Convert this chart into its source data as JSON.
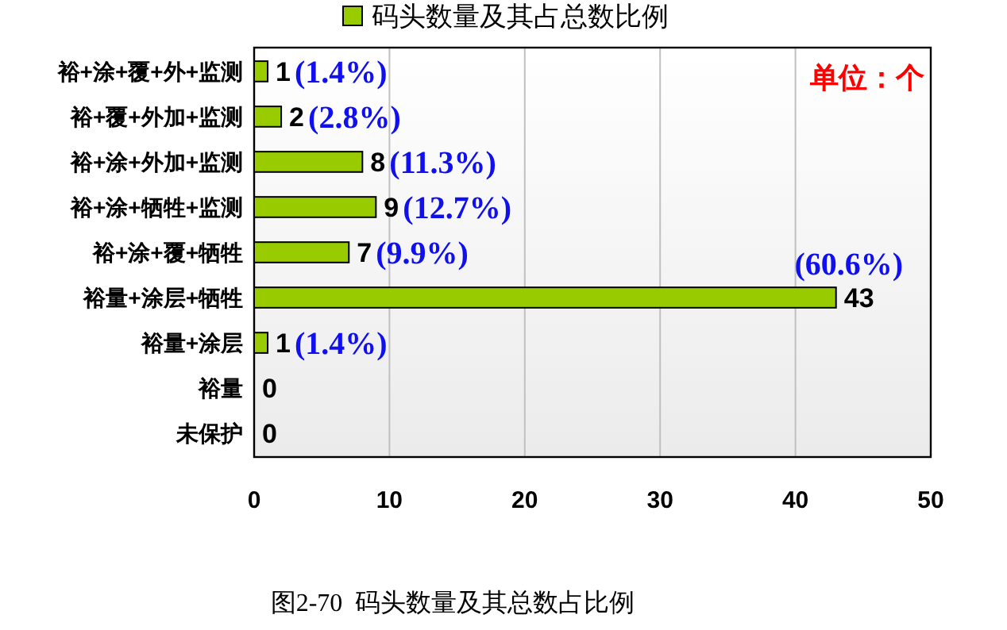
{
  "chart_data": {
    "type": "bar",
    "orientation": "horizontal",
    "categories": [
      "裕+涂+覆+外+监测",
      "裕+覆+外加+监测",
      "裕+涂+外加+监测",
      "裕+涂+牺牲+监测",
      "裕+涂+覆+牺牲",
      "裕量+涂层+牺牲",
      "裕量+涂层",
      "裕量",
      "未保护"
    ],
    "series": [
      {
        "name": "码头数量及其占总数比例",
        "color": "#99cc00",
        "values": [
          1,
          2,
          8,
          9,
          7,
          43,
          1,
          0,
          0
        ]
      }
    ],
    "xlim": [
      0,
      50
    ],
    "xticks": [
      0,
      10,
      20,
      30,
      40,
      50
    ],
    "grid": "x",
    "legend": "top",
    "data_labels": true,
    "annotations": [
      {
        "text": "(1.4%)",
        "x": 1,
        "y": "裕+涂+覆+外+监测"
      },
      {
        "text": "(2.8%)",
        "x": 2,
        "y": "裕+覆+外加+监测"
      },
      {
        "text": "(11.3%)",
        "x": 8,
        "y": "裕+涂+外加+监测"
      },
      {
        "text": "(12.7%)",
        "x": 9,
        "y": "裕+涂+牺牲+监测"
      },
      {
        "text": "(9.9%)",
        "x": 7,
        "y": "裕+涂+覆+牺牲"
      },
      {
        "text": "(60.6%)",
        "x": 43,
        "y": "裕量+涂层+牺牲"
      },
      {
        "text": "(1.4%)",
        "x": 1,
        "y": "裕量+涂层"
      },
      "单位：个",
      "图2-70  码头数量及其总数占比例"
    ]
  }
}
